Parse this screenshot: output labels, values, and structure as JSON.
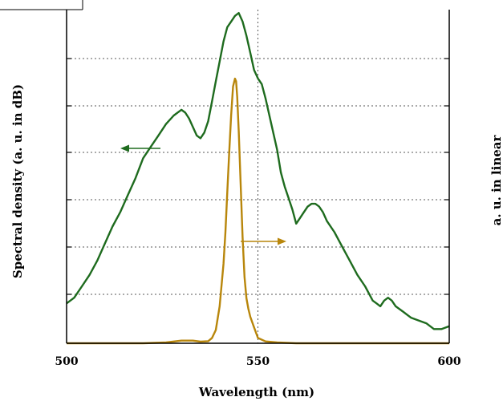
{
  "chart_data": {
    "type": "line",
    "xlabel": "Wavelength (nm)",
    "ylabel": "Spectral density (a. u. in dB)",
    "ylabel_right": "a. u. in linear",
    "xlim": [
      500,
      600
    ],
    "x_ticks": [
      "500",
      "550",
      "600"
    ],
    "grid": true,
    "colors": {
      "green": "#1e6b1e",
      "gold": "#b8860b",
      "grid": "#555555",
      "axes": "#000000"
    },
    "series": [
      {
        "axis": "left",
        "color": "#1e6b1e",
        "x": [
          500,
          502,
          504,
          506,
          508,
          510,
          512,
          514,
          516,
          518,
          520,
          522,
          524,
          526,
          528,
          530,
          531,
          532,
          533,
          534,
          535,
          536,
          537,
          538,
          539,
          540,
          541,
          542,
          543,
          544,
          545,
          546,
          547,
          548,
          549,
          550,
          551,
          552,
          553,
          554,
          555,
          556,
          557,
          558,
          559,
          560,
          561,
          562,
          563,
          564,
          565,
          566,
          567,
          568,
          570,
          572,
          574,
          576,
          578,
          580,
          581,
          582,
          583,
          584,
          585,
          586,
          588,
          590,
          592,
          594,
          596,
          598,
          600
        ],
        "y": [
          0.14,
          0.16,
          0.2,
          0.24,
          0.29,
          0.35,
          0.41,
          0.46,
          0.52,
          0.58,
          0.65,
          0.69,
          0.73,
          0.77,
          0.8,
          0.82,
          0.81,
          0.79,
          0.76,
          0.73,
          0.72,
          0.74,
          0.78,
          0.85,
          0.92,
          0.99,
          1.06,
          1.11,
          1.13,
          1.15,
          1.16,
          1.13,
          1.08,
          1.02,
          0.96,
          0.93,
          0.91,
          0.86,
          0.8,
          0.74,
          0.68,
          0.6,
          0.55,
          0.51,
          0.47,
          0.42,
          0.44,
          0.46,
          0.48,
          0.49,
          0.49,
          0.48,
          0.46,
          0.43,
          0.39,
          0.34,
          0.29,
          0.24,
          0.2,
          0.15,
          0.14,
          0.13,
          0.15,
          0.16,
          0.15,
          0.13,
          0.11,
          0.09,
          0.08,
          0.07,
          0.05,
          0.05,
          0.06
        ]
      },
      {
        "axis": "right",
        "color": "#b8860b",
        "x": [
          500,
          510,
          520,
          526,
          530,
          533,
          535,
          537,
          538,
          539,
          540,
          541,
          541.5,
          542,
          542.5,
          543,
          543.5,
          544,
          544.3,
          544.6,
          545,
          545.5,
          546,
          546.5,
          547,
          547.5,
          548,
          549,
          550,
          552,
          555,
          560,
          570,
          580,
          600
        ],
        "y": [
          0,
          0,
          0,
          0.003,
          0.01,
          0.01,
          0.006,
          0.008,
          0.02,
          0.05,
          0.14,
          0.3,
          0.42,
          0.57,
          0.72,
          0.86,
          0.97,
          1.0,
          0.99,
          0.93,
          0.8,
          0.6,
          0.4,
          0.25,
          0.17,
          0.13,
          0.1,
          0.06,
          0.02,
          0.007,
          0.003,
          0.0,
          0.0,
          0.0,
          0.0
        ]
      }
    ]
  }
}
